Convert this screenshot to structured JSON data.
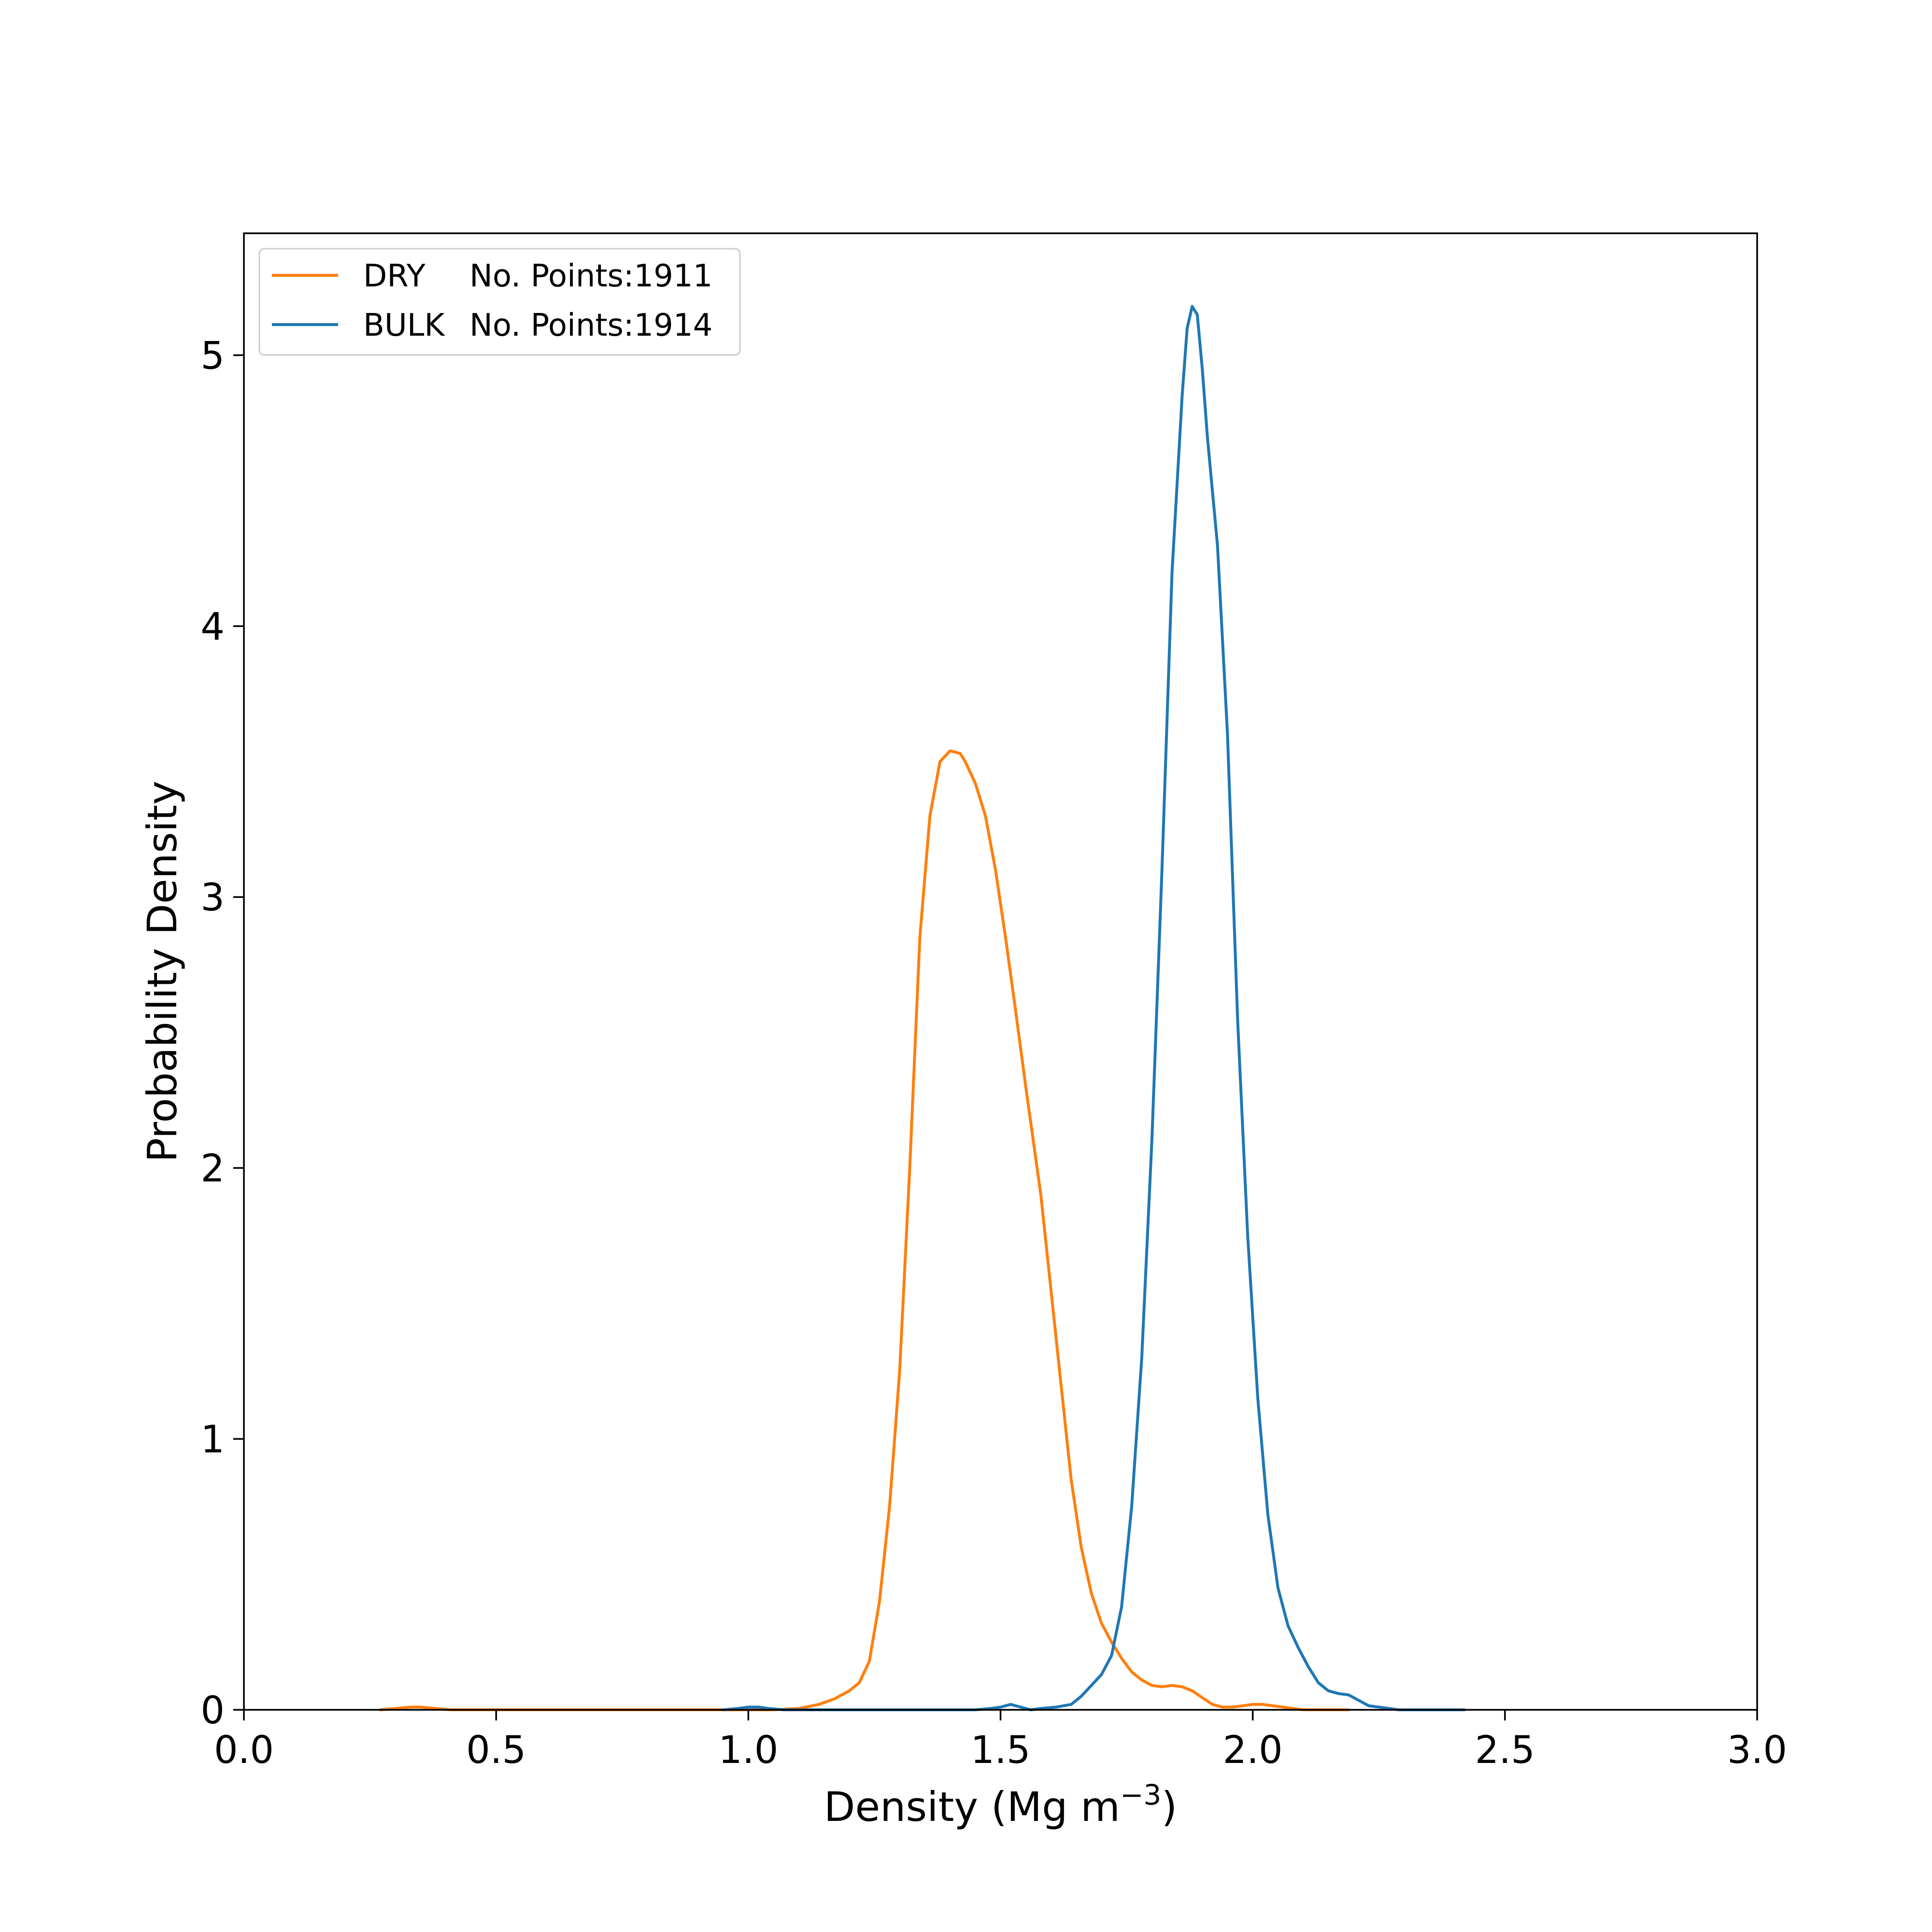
{
  "chart_data": {
    "type": "line",
    "title": "",
    "xlabel": "Density (Mg m",
    "xlabel_superscript": "−3",
    "xlabel_suffix": ")",
    "ylabel": "Probability Density",
    "xlim": [
      0.0,
      3.0
    ],
    "ylim": [
      0.0,
      5.45
    ],
    "xticks": [
      0.0,
      0.5,
      1.0,
      1.5,
      2.0,
      2.5,
      3.0
    ],
    "xtick_labels": [
      "0.0",
      "0.5",
      "1.0",
      "1.5",
      "2.0",
      "2.5",
      "3.0"
    ],
    "yticks": [
      0,
      1,
      2,
      3,
      4,
      5
    ],
    "ytick_labels": [
      "0",
      "1",
      "2",
      "3",
      "4",
      "5"
    ],
    "grid": false,
    "legend_position": "top-left",
    "legend": [
      {
        "name": "DRY",
        "detail": "No. Points:1911",
        "color": "#ff7f0e"
      },
      {
        "name": "BULK",
        "detail": "No. Points:1914",
        "color": "#1f77b4"
      }
    ],
    "series": [
      {
        "name": "DRY",
        "color": "#ff7f0e",
        "x": [
          0.27,
          0.3,
          0.33,
          0.35,
          0.38,
          0.41,
          0.45,
          0.6,
          0.8,
          0.95,
          1.05,
          1.1,
          1.14,
          1.17,
          1.2,
          1.22,
          1.24,
          1.26,
          1.28,
          1.3,
          1.32,
          1.34,
          1.36,
          1.38,
          1.4,
          1.42,
          1.43,
          1.45,
          1.47,
          1.49,
          1.51,
          1.53,
          1.55,
          1.58,
          1.6,
          1.62,
          1.64,
          1.66,
          1.68,
          1.7,
          1.72,
          1.74,
          1.76,
          1.78,
          1.8,
          1.82,
          1.84,
          1.86,
          1.88,
          1.9,
          1.92,
          1.94,
          1.96,
          1.98,
          2.0,
          2.02,
          2.04,
          2.06,
          2.08,
          2.1,
          2.12,
          2.14,
          2.16,
          2.19
        ],
        "y": [
          0.0,
          0.005,
          0.01,
          0.01,
          0.005,
          0.0,
          0.0,
          0.0,
          0.0,
          0.0,
          0.0,
          0.005,
          0.02,
          0.04,
          0.07,
          0.1,
          0.18,
          0.4,
          0.75,
          1.25,
          2.0,
          2.85,
          3.3,
          3.5,
          3.54,
          3.53,
          3.5,
          3.42,
          3.3,
          3.1,
          2.85,
          2.58,
          2.3,
          1.9,
          1.55,
          1.2,
          0.85,
          0.6,
          0.43,
          0.32,
          0.25,
          0.19,
          0.14,
          0.11,
          0.09,
          0.085,
          0.09,
          0.085,
          0.07,
          0.045,
          0.02,
          0.01,
          0.01,
          0.015,
          0.02,
          0.02,
          0.015,
          0.01,
          0.005,
          0.0,
          0.0,
          0.0,
          0.0,
          0.0
        ]
      },
      {
        "name": "BULK",
        "color": "#1f77b4",
        "x": [
          0.95,
          0.98,
          1.0,
          1.02,
          1.04,
          1.07,
          1.1,
          1.3,
          1.45,
          1.48,
          1.5,
          1.52,
          1.54,
          1.56,
          1.58,
          1.61,
          1.64,
          1.66,
          1.68,
          1.7,
          1.72,
          1.74,
          1.76,
          1.78,
          1.8,
          1.82,
          1.84,
          1.86,
          1.87,
          1.88,
          1.89,
          1.9,
          1.91,
          1.92,
          1.93,
          1.95,
          1.97,
          1.99,
          2.01,
          2.03,
          2.05,
          2.07,
          2.09,
          2.11,
          2.13,
          2.15,
          2.17,
          2.19,
          2.21,
          2.23,
          2.25,
          2.27,
          2.29,
          2.31,
          2.33,
          2.36,
          2.39,
          2.42
        ],
        "y": [
          0.0,
          0.005,
          0.01,
          0.01,
          0.005,
          0.0,
          0.0,
          0.0,
          0.0,
          0.005,
          0.01,
          0.02,
          0.01,
          0.0,
          0.005,
          0.01,
          0.02,
          0.05,
          0.09,
          0.13,
          0.2,
          0.38,
          0.75,
          1.3,
          2.1,
          3.1,
          4.2,
          4.85,
          5.1,
          5.18,
          5.15,
          4.95,
          4.7,
          4.5,
          4.3,
          3.6,
          2.55,
          1.75,
          1.15,
          0.72,
          0.45,
          0.31,
          0.23,
          0.16,
          0.1,
          0.07,
          0.06,
          0.055,
          0.035,
          0.015,
          0.01,
          0.005,
          0.0,
          0.0,
          0.0,
          0.0,
          0.0,
          0.0
        ]
      }
    ]
  }
}
